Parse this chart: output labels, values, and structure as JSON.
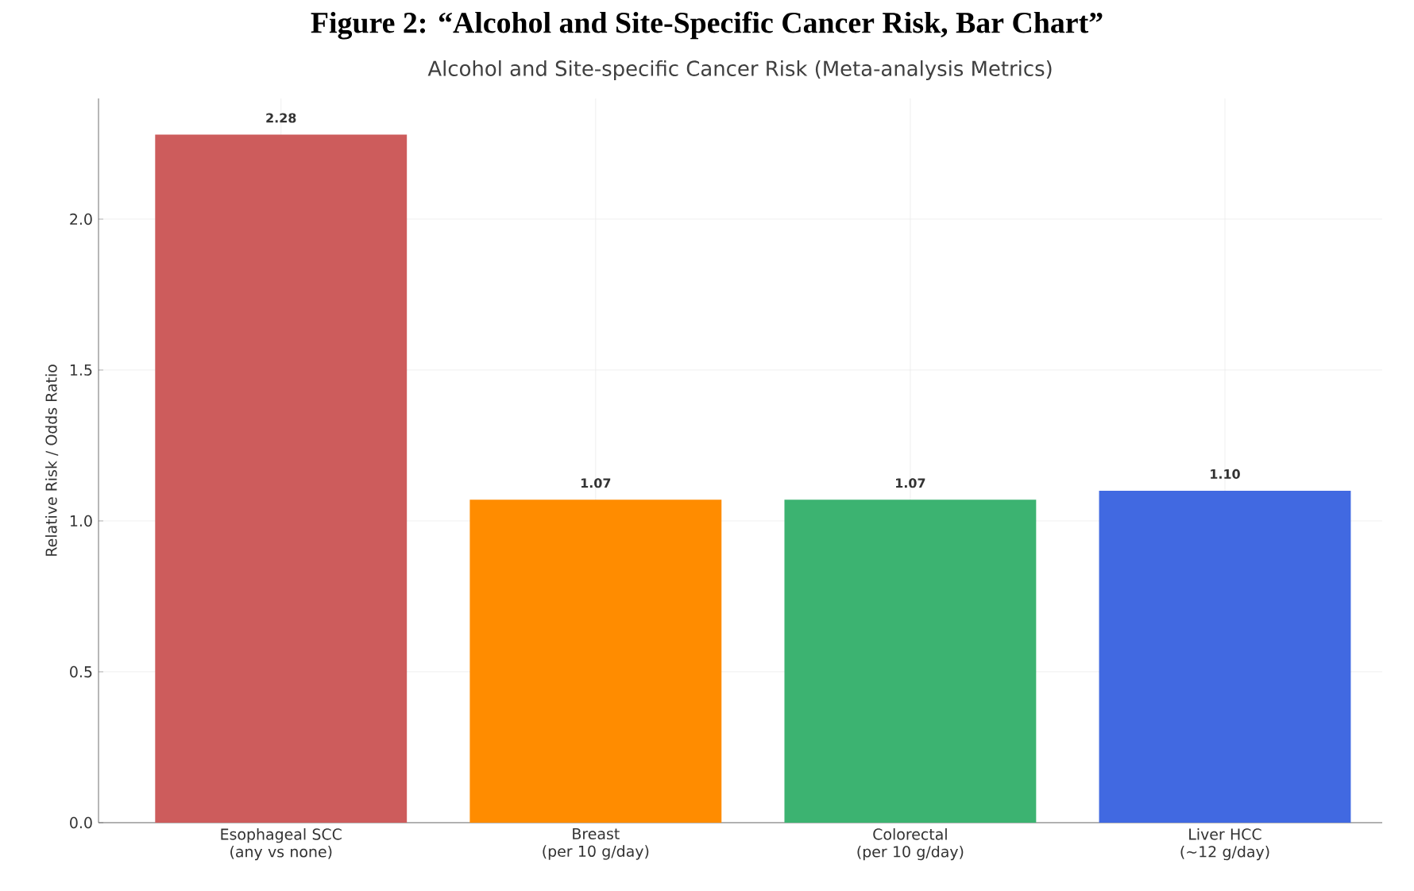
{
  "chart_data": {
    "type": "bar",
    "title": "Figure 2: “Alcohol and Site-Specific Cancer Risk, Bar Chart”",
    "subtitle": "Alcohol and Site-specific Cancer Risk (Meta-analysis Metrics)",
    "ylabel": "Relative Risk / Odds Ratio",
    "categories": [
      "Esophageal SCC\n(any vs none)",
      "Breast\n(per 10 g/day)",
      "Colorectal\n(per 10 g/day)",
      "Liver HCC\n(~12 g/day)"
    ],
    "values": [
      2.28,
      1.07,
      1.07,
      1.1
    ],
    "value_labels": [
      "2.28",
      "1.07",
      "1.07",
      "1.10"
    ],
    "colors": [
      "#cd5c5c",
      "#ff8c00",
      "#3cb371",
      "#4169e1"
    ],
    "ylim": [
      0,
      2.4
    ],
    "yticks": [
      {
        "value": 0,
        "label": "0.0"
      },
      {
        "value": 0.5,
        "label": "0.5"
      },
      {
        "value": 1.0,
        "label": "1.0"
      },
      {
        "value": 1.5,
        "label": "1.5"
      },
      {
        "value": 2.0,
        "label": "2.0"
      }
    ],
    "grid": true
  }
}
